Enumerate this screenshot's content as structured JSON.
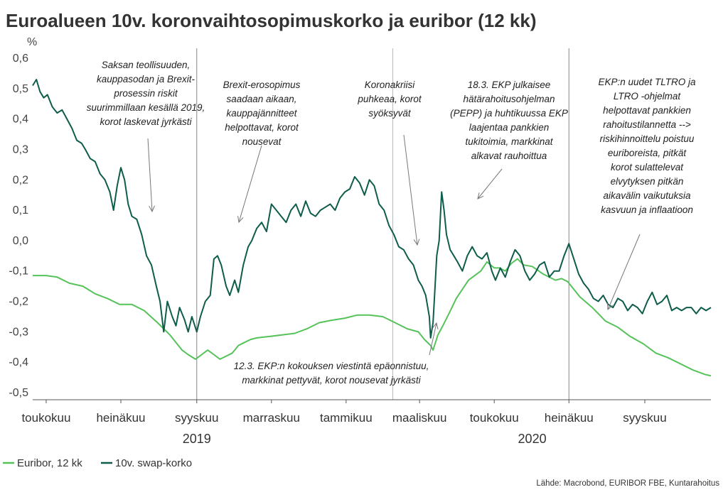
{
  "chart_data": {
    "type": "line",
    "title": "Euroalueen 10v. koronvaihtosopimuskorko ja euribor (12 kk)",
    "ylabel": "%",
    "ylim": [
      -0.5,
      0.6
    ],
    "yticks": [
      "0,6",
      "0,5",
      "0,4",
      "0,3",
      "0,2",
      "0,1",
      "0,0",
      "-0,1",
      "-0,2",
      "-0,3",
      "-0,4",
      "-0,5"
    ],
    "xlim": [
      "2019-04-20",
      "2020-10-25"
    ],
    "xticks": [
      {
        "label": "toukokuu",
        "date": "2019-05-01"
      },
      {
        "label": "heinäkuu",
        "date": "2019-07-01"
      },
      {
        "label": "syyskuu",
        "date": "2019-09-01"
      },
      {
        "label": "marraskuu",
        "date": "2019-11-01"
      },
      {
        "label": "tammikuu",
        "date": "2020-01-01"
      },
      {
        "label": "maaliskuu",
        "date": "2020-03-01"
      },
      {
        "label": "toukokuu",
        "date": "2020-05-01"
      },
      {
        "label": "heinäkuu",
        "date": "2020-07-01"
      },
      {
        "label": "syyskuu",
        "date": "2020-09-01"
      }
    ],
    "years": [
      {
        "label": "2019",
        "date": "2019-09-01"
      },
      {
        "label": "2020",
        "date": "2020-06-01"
      }
    ],
    "grid": false,
    "legend_position": "bottom-left",
    "series": [
      {
        "name": "Euribor, 12 kk",
        "color": "#56c25a",
        "points": [
          [
            "2019-04-20",
            -0.115
          ],
          [
            "2019-05-01",
            -0.115
          ],
          [
            "2019-05-10",
            -0.12
          ],
          [
            "2019-05-20",
            -0.14
          ],
          [
            "2019-05-31",
            -0.15
          ],
          [
            "2019-06-10",
            -0.175
          ],
          [
            "2019-06-20",
            -0.19
          ],
          [
            "2019-06-30",
            -0.21
          ],
          [
            "2019-07-10",
            -0.21
          ],
          [
            "2019-07-20",
            -0.23
          ],
          [
            "2019-07-31",
            -0.27
          ],
          [
            "2019-08-10",
            -0.31
          ],
          [
            "2019-08-20",
            -0.36
          ],
          [
            "2019-08-25",
            -0.375
          ],
          [
            "2019-08-31",
            -0.39
          ],
          [
            "2019-09-05",
            -0.375
          ],
          [
            "2019-09-10",
            -0.36
          ],
          [
            "2019-09-15",
            -0.375
          ],
          [
            "2019-09-20",
            -0.39
          ],
          [
            "2019-09-30",
            -0.37
          ],
          [
            "2019-10-05",
            -0.345
          ],
          [
            "2019-10-10",
            -0.335
          ],
          [
            "2019-10-15",
            -0.325
          ],
          [
            "2019-10-20",
            -0.32
          ],
          [
            "2019-10-31",
            -0.315
          ],
          [
            "2019-11-10",
            -0.31
          ],
          [
            "2019-11-20",
            -0.305
          ],
          [
            "2019-11-30",
            -0.29
          ],
          [
            "2019-12-10",
            -0.27
          ],
          [
            "2019-12-20",
            -0.262
          ],
          [
            "2019-12-31",
            -0.255
          ],
          [
            "2020-01-10",
            -0.245
          ],
          [
            "2020-01-20",
            -0.245
          ],
          [
            "2020-01-31",
            -0.25
          ],
          [
            "2020-02-10",
            -0.27
          ],
          [
            "2020-02-20",
            -0.29
          ],
          [
            "2020-02-29",
            -0.3
          ],
          [
            "2020-03-05",
            -0.325
          ],
          [
            "2020-03-10",
            -0.345
          ],
          [
            "2020-03-12",
            -0.36
          ],
          [
            "2020-03-16",
            -0.31
          ],
          [
            "2020-03-20",
            -0.28
          ],
          [
            "2020-03-25",
            -0.24
          ],
          [
            "2020-03-31",
            -0.19
          ],
          [
            "2020-04-05",
            -0.16
          ],
          [
            "2020-04-10",
            -0.13
          ],
          [
            "2020-04-20",
            -0.1
          ],
          [
            "2020-04-25",
            -0.07
          ],
          [
            "2020-05-01",
            -0.09
          ],
          [
            "2020-05-05",
            -0.09
          ],
          [
            "2020-05-10",
            -0.1
          ],
          [
            "2020-05-15",
            -0.075
          ],
          [
            "2020-05-20",
            -0.06
          ],
          [
            "2020-05-25",
            -0.08
          ],
          [
            "2020-06-01",
            -0.085
          ],
          [
            "2020-06-10",
            -0.11
          ],
          [
            "2020-06-20",
            -0.13
          ],
          [
            "2020-06-25",
            -0.125
          ],
          [
            "2020-06-30",
            -0.135
          ],
          [
            "2020-07-05",
            -0.16
          ],
          [
            "2020-07-10",
            -0.185
          ],
          [
            "2020-07-20",
            -0.22
          ],
          [
            "2020-07-31",
            -0.265
          ],
          [
            "2020-08-10",
            -0.285
          ],
          [
            "2020-08-20",
            -0.315
          ],
          [
            "2020-08-31",
            -0.34
          ],
          [
            "2020-09-10",
            -0.37
          ],
          [
            "2020-09-20",
            -0.385
          ],
          [
            "2020-09-30",
            -0.405
          ],
          [
            "2020-10-10",
            -0.425
          ],
          [
            "2020-10-20",
            -0.44
          ],
          [
            "2020-10-25",
            -0.445
          ]
        ]
      },
      {
        "name": "10v. swap-korko",
        "color": "#0e5c4a",
        "points": [
          [
            "2019-04-20",
            0.51
          ],
          [
            "2019-04-23",
            0.53
          ],
          [
            "2019-04-26",
            0.49
          ],
          [
            "2019-04-29",
            0.47
          ],
          [
            "2019-05-02",
            0.48
          ],
          [
            "2019-05-06",
            0.44
          ],
          [
            "2019-05-10",
            0.42
          ],
          [
            "2019-05-14",
            0.43
          ],
          [
            "2019-05-18",
            0.4
          ],
          [
            "2019-05-22",
            0.37
          ],
          [
            "2019-05-26",
            0.33
          ],
          [
            "2019-05-30",
            0.32
          ],
          [
            "2019-06-02",
            0.3
          ],
          [
            "2019-06-06",
            0.27
          ],
          [
            "2019-06-10",
            0.26
          ],
          [
            "2019-06-14",
            0.22
          ],
          [
            "2019-06-18",
            0.2
          ],
          [
            "2019-06-22",
            0.16
          ],
          [
            "2019-06-25",
            0.1
          ],
          [
            "2019-06-28",
            0.18
          ],
          [
            "2019-07-01",
            0.24
          ],
          [
            "2019-07-04",
            0.2
          ],
          [
            "2019-07-07",
            0.12
          ],
          [
            "2019-07-10",
            0.08
          ],
          [
            "2019-07-14",
            0.07
          ],
          [
            "2019-07-18",
            0.02
          ],
          [
            "2019-07-22",
            -0.05
          ],
          [
            "2019-07-26",
            -0.08
          ],
          [
            "2019-07-30",
            -0.15
          ],
          [
            "2019-08-02",
            -0.2
          ],
          [
            "2019-08-05",
            -0.3
          ],
          [
            "2019-08-08",
            -0.2
          ],
          [
            "2019-08-12",
            -0.25
          ],
          [
            "2019-08-15",
            -0.28
          ],
          [
            "2019-08-18",
            -0.22
          ],
          [
            "2019-08-22",
            -0.26
          ],
          [
            "2019-08-25",
            -0.3
          ],
          [
            "2019-08-28",
            -0.25
          ],
          [
            "2019-09-01",
            -0.3
          ],
          [
            "2019-09-04",
            -0.25
          ],
          [
            "2019-09-08",
            -0.2
          ],
          [
            "2019-09-12",
            -0.18
          ],
          [
            "2019-09-15",
            -0.06
          ],
          [
            "2019-09-18",
            -0.05
          ],
          [
            "2019-09-21",
            -0.08
          ],
          [
            "2019-09-25",
            -0.15
          ],
          [
            "2019-09-28",
            -0.18
          ],
          [
            "2019-10-02",
            -0.13
          ],
          [
            "2019-10-05",
            -0.17
          ],
          [
            "2019-10-09",
            -0.08
          ],
          [
            "2019-10-13",
            -0.02
          ],
          [
            "2019-10-16",
            0.0
          ],
          [
            "2019-10-20",
            0.04
          ],
          [
            "2019-10-24",
            0.06
          ],
          [
            "2019-10-28",
            0.03
          ],
          [
            "2019-11-01",
            0.12
          ],
          [
            "2019-11-05",
            0.1
          ],
          [
            "2019-11-09",
            0.08
          ],
          [
            "2019-11-13",
            0.06
          ],
          [
            "2019-11-17",
            0.1
          ],
          [
            "2019-11-21",
            0.12
          ],
          [
            "2019-11-25",
            0.08
          ],
          [
            "2019-11-29",
            0.13
          ],
          [
            "2019-12-03",
            0.09
          ],
          [
            "2019-12-07",
            0.08
          ],
          [
            "2019-12-11",
            0.1
          ],
          [
            "2019-12-15",
            0.11
          ],
          [
            "2019-12-19",
            0.12
          ],
          [
            "2019-12-23",
            0.1
          ],
          [
            "2019-12-27",
            0.14
          ],
          [
            "2019-12-31",
            0.16
          ],
          [
            "2020-01-04",
            0.17
          ],
          [
            "2020-01-08",
            0.21
          ],
          [
            "2020-01-12",
            0.19
          ],
          [
            "2020-01-16",
            0.15
          ],
          [
            "2020-01-20",
            0.2
          ],
          [
            "2020-01-24",
            0.18
          ],
          [
            "2020-01-28",
            0.12
          ],
          [
            "2020-02-01",
            0.1
          ],
          [
            "2020-02-05",
            0.05
          ],
          [
            "2020-02-09",
            0.02
          ],
          [
            "2020-02-13",
            -0.02
          ],
          [
            "2020-02-17",
            -0.03
          ],
          [
            "2020-02-21",
            -0.06
          ],
          [
            "2020-02-25",
            -0.08
          ],
          [
            "2020-02-29",
            -0.13
          ],
          [
            "2020-03-03",
            -0.15
          ],
          [
            "2020-03-06",
            -0.18
          ],
          [
            "2020-03-09",
            -0.25
          ],
          [
            "2020-03-10",
            -0.32
          ],
          [
            "2020-03-12",
            -0.27
          ],
          [
            "2020-03-13",
            -0.2
          ],
          [
            "2020-03-15",
            -0.05
          ],
          [
            "2020-03-17",
            0.0
          ],
          [
            "2020-03-19",
            0.16
          ],
          [
            "2020-03-21",
            0.1
          ],
          [
            "2020-03-23",
            0.02
          ],
          [
            "2020-03-26",
            -0.03
          ],
          [
            "2020-03-29",
            -0.05
          ],
          [
            "2020-04-01",
            -0.07
          ],
          [
            "2020-04-05",
            -0.1
          ],
          [
            "2020-04-09",
            -0.05
          ],
          [
            "2020-04-13",
            -0.02
          ],
          [
            "2020-04-17",
            -0.05
          ],
          [
            "2020-04-21",
            -0.06
          ],
          [
            "2020-04-25",
            -0.04
          ],
          [
            "2020-04-29",
            -0.1
          ],
          [
            "2020-05-02",
            -0.13
          ],
          [
            "2020-05-06",
            -0.09
          ],
          [
            "2020-05-10",
            -0.12
          ],
          [
            "2020-05-14",
            -0.07
          ],
          [
            "2020-05-18",
            -0.03
          ],
          [
            "2020-05-22",
            -0.05
          ],
          [
            "2020-05-26",
            -0.1
          ],
          [
            "2020-05-30",
            -0.13
          ],
          [
            "2020-06-03",
            -0.11
          ],
          [
            "2020-06-07",
            -0.08
          ],
          [
            "2020-06-11",
            -0.07
          ],
          [
            "2020-06-15",
            -0.12
          ],
          [
            "2020-06-19",
            -0.1
          ],
          [
            "2020-06-23",
            -0.1
          ],
          [
            "2020-06-27",
            -0.05
          ],
          [
            "2020-07-01",
            -0.01
          ],
          [
            "2020-07-05",
            -0.06
          ],
          [
            "2020-07-09",
            -0.11
          ],
          [
            "2020-07-13",
            -0.14
          ],
          [
            "2020-07-17",
            -0.16
          ],
          [
            "2020-07-21",
            -0.19
          ],
          [
            "2020-07-25",
            -0.2
          ],
          [
            "2020-07-29",
            -0.18
          ],
          [
            "2020-08-02",
            -0.21
          ],
          [
            "2020-08-06",
            -0.22
          ],
          [
            "2020-08-10",
            -0.19
          ],
          [
            "2020-08-14",
            -0.2
          ],
          [
            "2020-08-18",
            -0.23
          ],
          [
            "2020-08-22",
            -0.21
          ],
          [
            "2020-08-26",
            -0.22
          ],
          [
            "2020-08-30",
            -0.24
          ],
          [
            "2020-09-03",
            -0.2
          ],
          [
            "2020-09-07",
            -0.17
          ],
          [
            "2020-09-11",
            -0.21
          ],
          [
            "2020-09-15",
            -0.2
          ],
          [
            "2020-09-19",
            -0.18
          ],
          [
            "2020-09-23",
            -0.23
          ],
          [
            "2020-09-27",
            -0.22
          ],
          [
            "2020-10-01",
            -0.23
          ],
          [
            "2020-10-05",
            -0.22
          ],
          [
            "2020-10-09",
            -0.22
          ],
          [
            "2020-10-13",
            -0.24
          ],
          [
            "2020-10-17",
            -0.22
          ],
          [
            "2020-10-21",
            -0.23
          ],
          [
            "2020-10-25",
            -0.22
          ]
        ]
      }
    ],
    "annotations": [
      {
        "lines": [
          "Saksan teollisuuden,",
          "kauppasodan ja Brexit-",
          "prosessin riskit",
          "suurimmillaan kesällä 2019,",
          "korot laskevat jyrkästi"
        ]
      },
      {
        "lines": [
          "Brexit-erosopimus",
          "saadaan aikaan,",
          "kauppajännitteet",
          "helpottavat, korot",
          "nousevat"
        ]
      },
      {
        "lines": [
          "Koronakriisi",
          "puhkeaa, korot",
          "syöksyvät"
        ]
      },
      {
        "lines": [
          "18.3. EKP julkaisee",
          "hätärahoitusohjelman",
          "(PEPP) ja huhtikuussa EKP",
          "laajentaa pankkien",
          "tukitoimia, markkinat",
          "alkavat rauhoittua"
        ]
      },
      {
        "lines": [
          "EKP:n uudet TLTRO ja",
          "LTRO -ohjelmat",
          "helpottavat pankkien",
          "rahoitustilannetta -->",
          "riskihinnoittelu poistuu",
          "euriboreista, pitkät",
          "korot sulattelevat",
          "elvytyksen pitkän",
          "aikavälin vaikutuksia",
          "kasvuun ja inflaatioon"
        ]
      },
      {
        "lines": [
          "12.3. EKP:n kokouksen viestintä epäonnistuu,",
          "markkinat pettyvät, korot nousevat jyrkästi"
        ]
      }
    ],
    "source": "Lähde: Macrobond, EURIBOR FBE, Kuntarahoitus"
  }
}
